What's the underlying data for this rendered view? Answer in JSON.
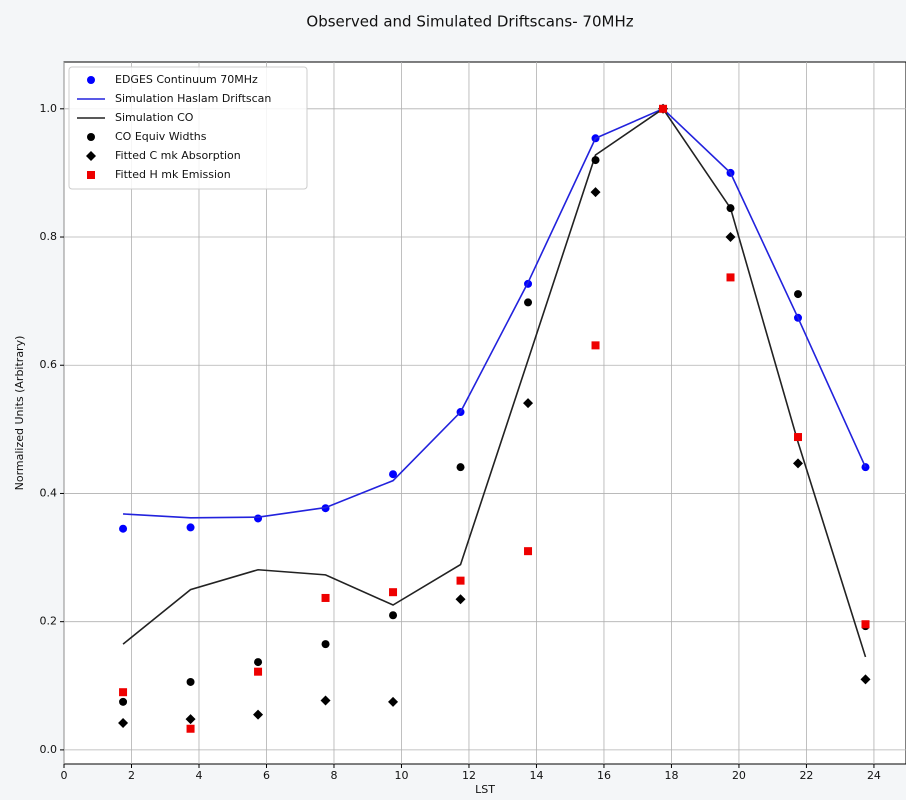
{
  "chart_data": {
    "type": "line",
    "title": "Observed and Simulated Driftscans- 70MHz",
    "x_label": "LST",
    "y_label": "Normalized Units (Arbitrary)",
    "x": [
      1.75,
      3.75,
      5.75,
      7.75,
      9.75,
      11.75,
      13.75,
      15.75,
      17.75,
      19.75,
      21.75,
      23.75
    ],
    "series": [
      {
        "name": "EDGES Continuum 70MHz",
        "color": "#0000ff",
        "marker": "circle",
        "values": [
          0.345,
          0.347,
          0.361,
          0.377,
          0.43,
          0.527,
          0.727,
          0.954,
          1.0,
          0.9,
          0.674,
          0.441
        ]
      },
      {
        "name": "Simulation Haslam Driftscan",
        "color": "#2222dd",
        "marker": "line",
        "values": [
          0.368,
          0.362,
          0.363,
          0.378,
          0.42,
          0.527,
          0.729,
          0.954,
          1.0,
          0.9,
          0.674,
          0.441
        ]
      },
      {
        "name": "Simulation CO",
        "color": "#222222",
        "marker": "line",
        "values": [
          0.165,
          0.25,
          0.281,
          0.273,
          0.226,
          0.289,
          0.608,
          0.928,
          1.0,
          0.845,
          0.48,
          0.145
        ]
      },
      {
        "name": "CO Equiv Widths",
        "color": "#000000",
        "marker": "circle",
        "values": [
          0.075,
          0.106,
          0.137,
          0.165,
          0.21,
          0.441,
          0.698,
          0.92,
          1.0,
          0.845,
          0.711,
          0.193
        ]
      },
      {
        "name": "Fitted C mk Absorption",
        "color": "#000000",
        "marker": "diamond",
        "values": [
          0.042,
          0.048,
          0.055,
          0.077,
          0.075,
          0.235,
          0.541,
          0.87,
          1.0,
          0.8,
          0.447,
          0.11
        ]
      },
      {
        "name": "Fitted H mk Emission",
        "color": "#ee0000",
        "marker": "square",
        "values": [
          0.09,
          0.033,
          0.122,
          0.237,
          0.246,
          0.264,
          0.31,
          0.631,
          1.0,
          0.737,
          0.488,
          0.196
        ]
      }
    ],
    "xlim": [
      0,
      24.95
    ],
    "xticks": [
      0,
      2,
      4,
      6,
      8,
      10,
      12,
      14,
      16,
      18,
      20,
      22,
      24
    ],
    "ylim": [
      -0.022,
      1.073
    ],
    "yticks": [
      {
        "value": 0,
        "label": "0.0"
      },
      0.2,
      0.4,
      0.6,
      0.8,
      {
        "value": 1,
        "label": "1.0"
      }
    ],
    "grid": true,
    "legend": "upper-left"
  }
}
